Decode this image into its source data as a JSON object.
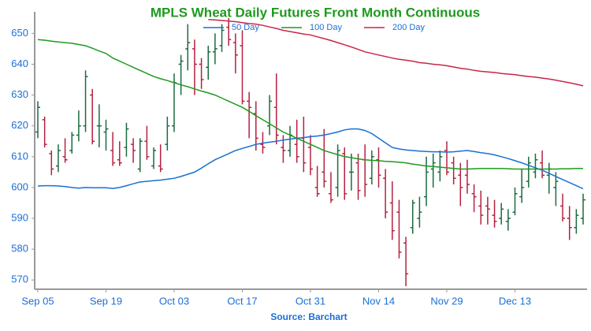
{
  "chart_data": {
    "type": "ohlc",
    "title": "MPLS Wheat Daily Futures Front Month Continuous",
    "source": "Source: Barchart",
    "categories": [
      "Sep 05",
      null,
      null,
      null,
      null,
      null,
      null,
      null,
      null,
      null,
      "Sep 19",
      null,
      null,
      null,
      null,
      null,
      null,
      null,
      null,
      null,
      "Oct 03",
      null,
      null,
      null,
      null,
      null,
      null,
      null,
      null,
      null,
      "Oct 17",
      null,
      null,
      null,
      null,
      null,
      null,
      null,
      null,
      null,
      "Oct 31",
      null,
      null,
      null,
      null,
      null,
      null,
      null,
      null,
      null,
      "Nov 14",
      null,
      null,
      null,
      null,
      null,
      null,
      null,
      null,
      null,
      "Nov 29",
      null,
      null,
      null,
      null,
      null,
      null,
      null,
      null,
      null,
      "Dec 13",
      null,
      null,
      null,
      null,
      null,
      null,
      null,
      null,
      null,
      null
    ],
    "open": [
      618,
      622,
      611,
      607,
      610,
      612,
      617,
      620,
      630,
      620,
      618,
      612,
      609,
      613,
      614,
      606,
      615,
      607,
      607,
      614,
      620,
      640,
      645,
      645,
      640,
      639,
      644,
      646,
      652,
      647,
      646,
      628,
      624,
      614,
      620,
      626,
      613,
      612,
      614,
      616,
      613,
      600,
      605,
      598,
      600,
      611,
      605,
      608,
      609,
      603,
      609,
      603,
      595,
      592,
      582,
      587,
      590,
      597,
      606,
      605,
      612,
      608,
      604,
      604,
      598,
      594,
      594,
      591,
      590,
      589,
      592,
      597,
      602,
      605,
      608,
      604,
      600,
      594,
      590,
      587,
      590
    ],
    "high": [
      628,
      623,
      612,
      614,
      616,
      618,
      625,
      638,
      632,
      627,
      622,
      618,
      615,
      621,
      616,
      616,
      620,
      613,
      614,
      623,
      637,
      643,
      653,
      648,
      642,
      646,
      650,
      653,
      655,
      650,
      651,
      631,
      628,
      618,
      630,
      637,
      617,
      620,
      622,
      623,
      617,
      607,
      619,
      605,
      614,
      613,
      611,
      611,
      614,
      612,
      613,
      606,
      602,
      596,
      584,
      596,
      597,
      610,
      611,
      612,
      615,
      610,
      608,
      609,
      601,
      599,
      597,
      596,
      595,
      593,
      600,
      606,
      610,
      611,
      612,
      608,
      605,
      598,
      594,
      593,
      598
    ],
    "low": [
      616,
      613,
      604,
      605,
      608,
      611,
      615,
      618,
      614,
      613,
      612,
      607,
      607,
      610,
      608,
      605,
      609,
      606,
      605,
      612,
      618,
      630,
      638,
      630,
      632,
      635,
      640,
      644,
      646,
      637,
      627,
      616,
      612,
      611,
      617,
      614,
      608,
      610,
      608,
      605,
      604,
      597,
      600,
      595,
      597,
      596,
      599,
      596,
      597,
      601,
      600,
      590,
      583,
      577,
      568,
      585,
      587,
      594,
      600,
      602,
      604,
      601,
      594,
      598,
      592,
      588,
      588,
      587,
      588,
      586,
      591,
      595,
      600,
      603,
      603,
      598,
      594,
      589,
      583,
      585,
      588
    ],
    "close": [
      626,
      614,
      606,
      612,
      609,
      617,
      620,
      636,
      615,
      620,
      619,
      608,
      608,
      619,
      612,
      615,
      610,
      612,
      606,
      620,
      634,
      641,
      647,
      640,
      635,
      644,
      645,
      651,
      648,
      643,
      628,
      626,
      616,
      613,
      628,
      617,
      612,
      617,
      610,
      608,
      606,
      598,
      602,
      596,
      612,
      598,
      605,
      599,
      601,
      610,
      604,
      592,
      586,
      579,
      572,
      595,
      592,
      605,
      608,
      610,
      605,
      603,
      600,
      601,
      597,
      591,
      593,
      589,
      593,
      590,
      598,
      600,
      608,
      609,
      604,
      606,
      602,
      590,
      587,
      591,
      596
    ],
    "up_color": "#1b6b3e",
    "down_color": "#b5213f",
    "series": [
      {
        "name": "50 Day",
        "color": "#1a6fd6",
        "values": [
          600.5,
          600.6,
          600.6,
          600.5,
          600.3,
          600.0,
          599.8,
          600.0,
          599.9,
          599.9,
          599.9,
          599.7,
          600.0,
          600.6,
          601.2,
          601.8,
          602.0,
          602.2,
          602.4,
          602.7,
          603.0,
          603.6,
          604.3,
          605.0,
          606.3,
          607.7,
          609.0,
          610.0,
          611.0,
          612.0,
          612.7,
          613.3,
          614.0,
          614.4,
          614.7,
          615.0,
          615.4,
          615.7,
          616.0,
          616.2,
          616.5,
          616.7,
          617.0,
          617.5,
          618.0,
          618.7,
          619.0,
          619.0,
          618.5,
          617.5,
          616.0,
          614.5,
          613.0,
          612.5,
          612.2,
          612.0,
          611.8,
          611.7,
          611.6,
          611.6,
          611.5,
          611.6,
          611.8,
          612.0,
          611.7,
          611.3,
          611.0,
          610.6,
          610.0,
          609.4,
          608.7,
          608.0,
          607.2,
          606.4,
          605.6,
          604.6,
          603.6,
          602.6,
          601.6,
          600.6,
          599.6
        ]
      },
      {
        "name": "100 Day",
        "color": "#1e9a1e",
        "values": [
          648.0,
          647.8,
          647.5,
          647.2,
          647.0,
          646.8,
          646.4,
          646.0,
          645.2,
          644.3,
          643.5,
          642.0,
          641.0,
          640.0,
          639.0,
          638.0,
          637.0,
          636.0,
          635.3,
          634.7,
          634.0,
          633.3,
          632.7,
          632.0,
          631.3,
          630.7,
          630.0,
          629.0,
          628.0,
          627.0,
          626.0,
          624.7,
          623.3,
          622.0,
          620.7,
          619.3,
          618.0,
          617.0,
          616.0,
          615.0,
          614.0,
          613.0,
          612.0,
          611.3,
          610.7,
          610.0,
          609.7,
          609.3,
          609.0,
          608.8,
          608.7,
          608.5,
          608.4,
          608.2,
          608.0,
          607.6,
          607.3,
          607.0,
          606.8,
          606.6,
          606.4,
          606.2,
          606.0,
          606.0,
          606.1,
          606.2,
          606.2,
          606.2,
          606.2,
          606.1,
          606.0,
          606.0,
          606.0,
          606.0,
          606.0,
          606.0,
          606.0,
          606.1,
          606.1,
          606.2,
          606.2
        ]
      },
      {
        "name": "200 Day",
        "color": "#c8264a",
        "values": [
          null,
          null,
          null,
          null,
          null,
          null,
          null,
          null,
          null,
          null,
          null,
          null,
          null,
          null,
          null,
          null,
          null,
          null,
          null,
          null,
          null,
          null,
          null,
          null,
          null,
          654.5,
          654.4,
          654.2,
          654.0,
          653.8,
          653.5,
          653.2,
          653.0,
          652.6,
          652.1,
          651.6,
          651.0,
          650.6,
          650.2,
          649.8,
          649.5,
          648.9,
          648.3,
          647.7,
          647.0,
          646.3,
          645.6,
          644.8,
          644.0,
          643.5,
          643.0,
          642.5,
          642.0,
          641.6,
          641.3,
          641.0,
          640.5,
          640.3,
          640.0,
          639.8,
          639.5,
          639.1,
          638.7,
          638.4,
          638.0,
          637.7,
          637.5,
          637.3,
          637.0,
          636.8,
          636.6,
          636.3,
          636.0,
          635.8,
          635.5,
          635.2,
          634.8,
          634.4,
          634.0,
          633.5,
          633.0
        ]
      }
    ],
    "ylim": [
      567,
      657
    ],
    "yticks": [
      570,
      580,
      590,
      600,
      610,
      620,
      630,
      640,
      650
    ],
    "grid": false,
    "legend": "top"
  }
}
